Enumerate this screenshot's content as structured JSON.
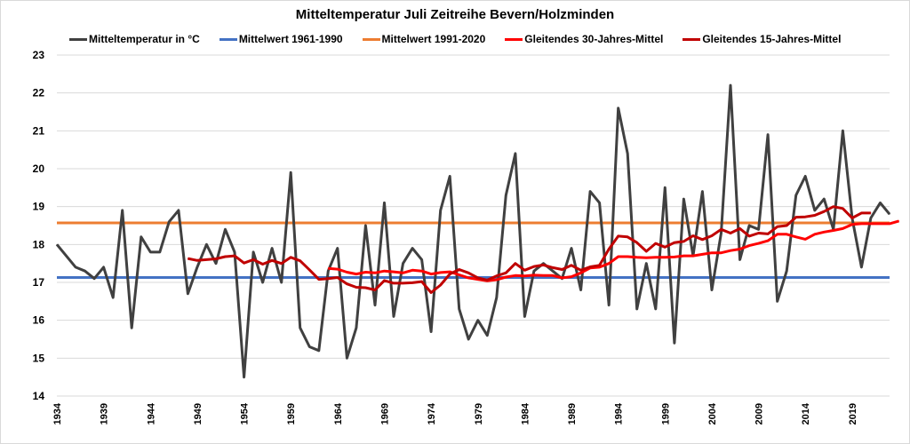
{
  "chart_data": {
    "type": "line",
    "title": "Mitteltemperatur Juli Zeitreihe Bevern/Holzminden",
    "xlabel": "",
    "ylabel": "",
    "ylim": [
      14,
      23
    ],
    "xlim": [
      1934,
      2023
    ],
    "grid": true,
    "legend_position": "top",
    "y_ticks": [
      "14",
      "15",
      "16",
      "17",
      "18",
      "19",
      "20",
      "21",
      "22",
      "23"
    ],
    "x_ticks": [
      "1934",
      "1939",
      "1944",
      "1949",
      "1954",
      "1959",
      "1964",
      "1969",
      "1974",
      "1979",
      "1984",
      "1989",
      "1994",
      "1999",
      "2004",
      "2009",
      "2014",
      "2019"
    ],
    "x_start": 1934,
    "series": [
      {
        "name": "Mitteltemperatur in °C",
        "color": "#404040",
        "start_year": 1934,
        "values": [
          18.0,
          17.7,
          17.4,
          17.3,
          17.1,
          17.4,
          16.6,
          18.9,
          15.8,
          18.2,
          17.8,
          17.8,
          18.6,
          18.9,
          16.7,
          17.4,
          18.0,
          17.5,
          18.4,
          17.8,
          14.5,
          17.8,
          17.0,
          17.9,
          17.0,
          19.9,
          15.8,
          15.3,
          15.2,
          17.3,
          17.9,
          15.0,
          15.8,
          18.5,
          16.4,
          19.1,
          16.1,
          17.5,
          17.9,
          17.6,
          15.7,
          18.9,
          19.8,
          16.3,
          15.5,
          16.0,
          15.6,
          16.6,
          19.3,
          20.4,
          16.1,
          17.3,
          17.5,
          17.3,
          17.1,
          17.9,
          16.8,
          19.4,
          19.1,
          16.4,
          21.6,
          20.4,
          16.3,
          17.5,
          16.3,
          19.5,
          15.4,
          19.2,
          17.7,
          19.4,
          16.8,
          18.3,
          22.2,
          17.6,
          18.5,
          18.4,
          20.9,
          16.5,
          17.3,
          19.3,
          19.8,
          18.9,
          19.2,
          18.4,
          21.0,
          18.7,
          17.4,
          18.7,
          19.1,
          18.8
        ]
      },
      {
        "name": "Mittelwert 1961-1990",
        "color": "#4472c4",
        "constant": 17.13
      },
      {
        "name": "Mittelwert 1991-2020",
        "color": "#ed7d31",
        "constant": 18.57
      },
      {
        "name": "Gleitendes 30-Jahres-Mittel",
        "color": "#ff0000",
        "start_year": 1963,
        "values": [
          17.37,
          17.35,
          17.27,
          17.22,
          17.27,
          17.25,
          17.3,
          17.28,
          17.25,
          17.32,
          17.3,
          17.22,
          17.26,
          17.28,
          17.2,
          17.12,
          17.08,
          17.04,
          17.07,
          17.14,
          17.18,
          17.17,
          17.19,
          17.18,
          17.18,
          17.12,
          17.15,
          17.25,
          17.38,
          17.4,
          17.5,
          17.68,
          17.68,
          17.66,
          17.65,
          17.66,
          17.66,
          17.67,
          17.7,
          17.7,
          17.74,
          17.78,
          17.78,
          17.84,
          17.88,
          17.97,
          18.03,
          18.1,
          18.27,
          18.27,
          18.2,
          18.14,
          18.27,
          18.33,
          18.37,
          18.42,
          18.53,
          18.55,
          18.55,
          18.55,
          18.55,
          18.62
        ]
      },
      {
        "name": "Gleitendes 15-Jahres-Mittel",
        "color": "#c00000",
        "start_year": 1948,
        "values": [
          17.63,
          17.58,
          17.6,
          17.62,
          17.68,
          17.7,
          17.51,
          17.6,
          17.48,
          17.58,
          17.5,
          17.66,
          17.57,
          17.33,
          17.08,
          17.1,
          17.13,
          16.96,
          16.87,
          16.86,
          16.8,
          17.05,
          16.98,
          16.98,
          16.99,
          17.02,
          16.73,
          16.93,
          17.22,
          17.34,
          17.25,
          17.12,
          17.06,
          17.17,
          17.25,
          17.5,
          17.32,
          17.42,
          17.46,
          17.39,
          17.34,
          17.45,
          17.32,
          17.41,
          17.45,
          17.88,
          18.22,
          18.2,
          18.05,
          17.82,
          18.03,
          17.93,
          18.05,
          18.08,
          18.23,
          18.13,
          18.23,
          18.4,
          18.3,
          18.42,
          18.22,
          18.3,
          18.28,
          18.47,
          18.5,
          18.72,
          18.73,
          18.77,
          18.87,
          19.0,
          18.95,
          18.7,
          18.83,
          18.83
        ]
      }
    ]
  }
}
